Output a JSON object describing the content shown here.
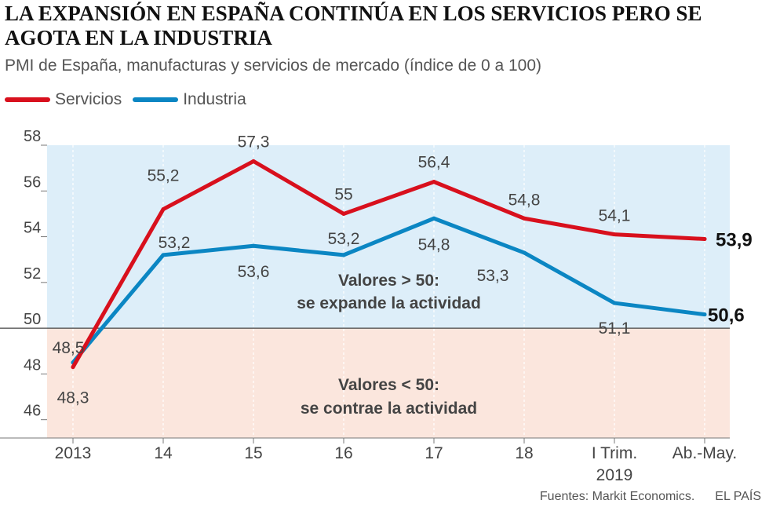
{
  "title": "La expansión en España continúa en los servicios pero se agota en la industria",
  "subtitle": "PMI de España, manufacturas y servicios de mercado (índice de 0 a 100)",
  "legend": [
    {
      "label": "Servicios",
      "color": "#d8101d"
    },
    {
      "label": "Industria",
      "color": "#0b86c3"
    }
  ],
  "source": "Fuentes: Markit Economics.",
  "publisher": "EL PAÍS",
  "chart_data": {
    "type": "line",
    "title": "La expansión en España continúa en los servicios pero se agota en la industria",
    "subtitle": "PMI de España, manufacturas y servicios de mercado (índice de 0 a 100)",
    "categories": [
      "2013",
      "14",
      "15",
      "16",
      "17",
      "18",
      "I Trim.",
      "Ab.-May."
    ],
    "x_year_label": "2019",
    "ylim": [
      45.2,
      58
    ],
    "yticks": [
      46,
      48,
      50,
      52,
      54,
      56,
      58
    ],
    "threshold": 50,
    "series": [
      {
        "name": "Servicios",
        "color": "#d8101d",
        "values": [
          48.3,
          55.2,
          57.3,
          55,
          56.4,
          54.8,
          54.1,
          53.9
        ],
        "labels": [
          "48,3",
          "55,2",
          "57,3",
          "55",
          "56,4",
          "54,8",
          "54,1",
          "53,9"
        ]
      },
      {
        "name": "Industria",
        "color": "#0b86c3",
        "values": [
          48.5,
          53.2,
          53.6,
          53.2,
          54.8,
          53.3,
          51.1,
          50.6
        ],
        "labels": [
          "48,5",
          "53,2",
          "53,6",
          "53,2",
          "54,8",
          "53,3",
          "51,1",
          "50,6"
        ]
      }
    ],
    "annotations": [
      {
        "lines": [
          "Valores > 50:",
          "se expande la actividad"
        ],
        "region": "above-50"
      },
      {
        "lines": [
          "Valores < 50:",
          "se contrae la actividad"
        ],
        "region": "below-50"
      }
    ],
    "colors": {
      "expansion_bg": "#ddeef9",
      "contraction_bg": "#fbe6dd"
    }
  }
}
